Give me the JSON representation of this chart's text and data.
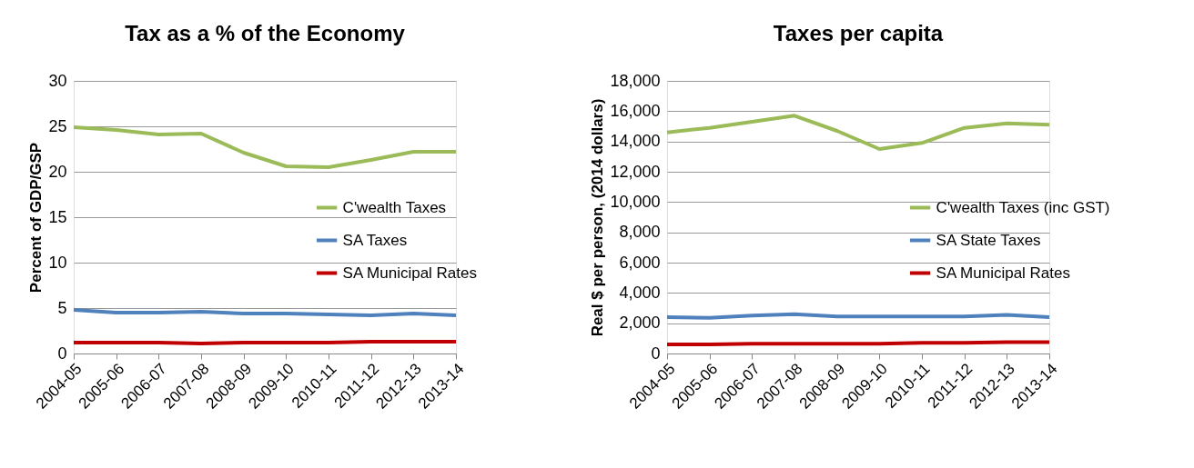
{
  "chart_data": [
    {
      "type": "line",
      "title": "Tax as a % of the Economy",
      "ylabel": "Percent of GDP/GSP",
      "categories": [
        "2004-05",
        "2005-06",
        "2006-07",
        "2007-08",
        "2008-09",
        "2009-10",
        "2010-11",
        "2011-12",
        "2012-13",
        "2013-14"
      ],
      "series": [
        {
          "name": "C'wealth Taxes",
          "color": "#9bbb59",
          "values": [
            24.9,
            24.6,
            24.1,
            24.2,
            22.1,
            20.6,
            20.5,
            21.3,
            22.2,
            22.2
          ]
        },
        {
          "name": "SA Taxes",
          "color": "#4f81bd",
          "values": [
            4.8,
            4.5,
            4.5,
            4.6,
            4.4,
            4.4,
            4.3,
            4.2,
            4.4,
            4.2
          ]
        },
        {
          "name": "SA Municipal Rates",
          "color": "#c00000",
          "values": [
            1.2,
            1.2,
            1.2,
            1.1,
            1.2,
            1.2,
            1.2,
            1.3,
            1.3,
            1.3
          ]
        }
      ],
      "ylim": [
        0,
        30
      ],
      "yticks": [
        0,
        5,
        10,
        15,
        20,
        25,
        30
      ],
      "grid": "y",
      "legend": "right",
      "marker": "none",
      "line_style": "solid"
    },
    {
      "type": "line",
      "title": "Taxes per capita",
      "ylabel": "Real  $ per person, (2014 dollars)",
      "categories": [
        "2004-05",
        "2005-06",
        "2006-07",
        "2007-08",
        "2008-09",
        "2009-10",
        "2010-11",
        "2011-12",
        "2012-13",
        "2013-14"
      ],
      "series": [
        {
          "name": "C'wealth Taxes (inc GST)",
          "color": "#9bbb59",
          "values": [
            14600,
            14900,
            15300,
            15700,
            14700,
            13500,
            13900,
            14900,
            15200,
            15100
          ]
        },
        {
          "name": "SA State Taxes",
          "color": "#4f81bd",
          "values": [
            2400,
            2350,
            2500,
            2600,
            2450,
            2450,
            2450,
            2450,
            2550,
            2400
          ]
        },
        {
          "name": "SA Municipal Rates",
          "color": "#c00000",
          "values": [
            600,
            600,
            650,
            650,
            650,
            650,
            700,
            700,
            750,
            750
          ]
        }
      ],
      "ylim": [
        0,
        18000
      ],
      "yticks": [
        {
          "value": 0,
          "label": "0"
        },
        {
          "value": 2000,
          "label": "2,000"
        },
        {
          "value": 4000,
          "label": "4,000"
        },
        {
          "value": 6000,
          "label": "6,000"
        },
        {
          "value": 8000,
          "label": "8,000"
        },
        {
          "value": 10000,
          "label": "10,000"
        },
        {
          "value": 12000,
          "label": "12,000"
        },
        {
          "value": 14000,
          "label": "14,000"
        },
        {
          "value": 16000,
          "label": "16,000"
        },
        {
          "value": 18000,
          "label": "18,000"
        }
      ],
      "grid": "y",
      "legend": "right",
      "marker": "none",
      "line_style": "solid"
    }
  ]
}
